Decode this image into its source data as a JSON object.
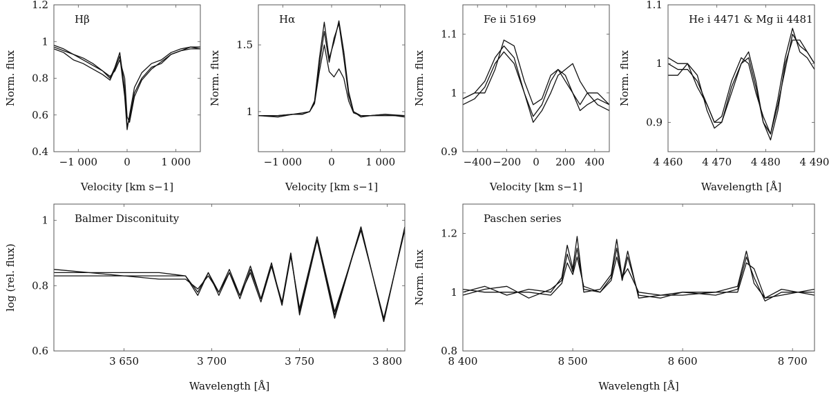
{
  "chart_data": [
    {
      "id": "hbeta",
      "type": "line",
      "title": "Hβ",
      "xlabel": "Velocity [km s−1]",
      "ylabel": "Norm. flux",
      "xlim": [
        -1500,
        1500
      ],
      "ylim": [
        0.4,
        1.2
      ],
      "xticks": [
        {
          "v": -1000,
          "label": "−1 000"
        },
        {
          "v": 0,
          "label": "0"
        },
        {
          "v": 1000,
          "label": "1 000"
        }
      ],
      "yticks": [
        {
          "v": 0.4,
          "label": "0.4"
        },
        {
          "v": 0.6,
          "label": "0.6"
        },
        {
          "v": 0.8,
          "label": "0.8"
        },
        {
          "v": 1.0,
          "label": "1"
        },
        {
          "v": 1.2,
          "label": "1.2"
        }
      ],
      "series": [
        {
          "x": [
            -1500,
            -1300,
            -1100,
            -900,
            -700,
            -500,
            -350,
            -250,
            -150,
            -50,
            0,
            50,
            150,
            300,
            500,
            700,
            900,
            1100,
            1300,
            1500
          ],
          "y": [
            0.97,
            0.95,
            0.93,
            0.9,
            0.87,
            0.84,
            0.8,
            0.86,
            0.94,
            0.74,
            0.54,
            0.58,
            0.72,
            0.8,
            0.86,
            0.88,
            0.93,
            0.95,
            0.96,
            0.96
          ]
        },
        {
          "x": [
            -1500,
            -1300,
            -1100,
            -900,
            -700,
            -500,
            -350,
            -250,
            -150,
            -50,
            0,
            50,
            150,
            300,
            500,
            700,
            900,
            1100,
            1300,
            1500
          ],
          "y": [
            0.96,
            0.94,
            0.9,
            0.88,
            0.85,
            0.82,
            0.79,
            0.85,
            0.92,
            0.7,
            0.52,
            0.6,
            0.75,
            0.83,
            0.88,
            0.9,
            0.94,
            0.96,
            0.97,
            0.96
          ]
        },
        {
          "x": [
            -1500,
            -1300,
            -1100,
            -900,
            -700,
            -500,
            -350,
            -250,
            -150,
            -50,
            0,
            50,
            150,
            300,
            500,
            700,
            900,
            1100,
            1300,
            1500
          ],
          "y": [
            0.98,
            0.96,
            0.93,
            0.91,
            0.88,
            0.84,
            0.81,
            0.84,
            0.9,
            0.8,
            0.59,
            0.56,
            0.7,
            0.79,
            0.85,
            0.89,
            0.93,
            0.95,
            0.97,
            0.97
          ]
        }
      ]
    },
    {
      "id": "halpha",
      "type": "line",
      "title": "Hα",
      "xlabel": "Velocity [km s−1]",
      "ylabel": "Norm. flux",
      "xlim": [
        -1500,
        1500
      ],
      "ylim": [
        0.7,
        1.8
      ],
      "xticks": [
        {
          "v": -1000,
          "label": "−1 000"
        },
        {
          "v": 0,
          "label": "0"
        },
        {
          "v": 1000,
          "label": "1 000"
        }
      ],
      "yticks": [
        {
          "v": 1.0,
          "label": "1"
        },
        {
          "v": 1.5,
          "label": "1.5"
        }
      ],
      "series": [
        {
          "x": [
            -1500,
            -1100,
            -800,
            -600,
            -450,
            -350,
            -250,
            -150,
            -50,
            50,
            150,
            250,
            350,
            450,
            600,
            800,
            1100,
            1500
          ],
          "y": [
            0.97,
            0.97,
            0.98,
            0.98,
            1.0,
            1.08,
            1.4,
            1.67,
            1.4,
            1.52,
            1.68,
            1.45,
            1.15,
            1.0,
            0.97,
            0.97,
            0.98,
            0.97
          ]
        },
        {
          "x": [
            -1500,
            -1100,
            -800,
            -600,
            -450,
            -350,
            -250,
            -150,
            -50,
            50,
            150,
            250,
            350,
            450,
            600,
            800,
            1100,
            1500
          ],
          "y": [
            0.97,
            0.96,
            0.98,
            0.99,
            1.0,
            1.07,
            1.35,
            1.6,
            1.37,
            1.55,
            1.66,
            1.4,
            1.12,
            1.0,
            0.96,
            0.97,
            0.98,
            0.96
          ]
        },
        {
          "x": [
            -1500,
            -1100,
            -800,
            -600,
            -450,
            -350,
            -250,
            -150,
            -50,
            50,
            150,
            250,
            350,
            450,
            600,
            800,
            1100,
            1500
          ],
          "y": [
            0.97,
            0.97,
            0.98,
            0.98,
            1.0,
            1.06,
            1.3,
            1.5,
            1.3,
            1.26,
            1.32,
            1.25,
            1.08,
            0.99,
            0.97,
            0.97,
            0.97,
            0.97
          ]
        }
      ]
    },
    {
      "id": "fe2",
      "type": "line",
      "title": "Fe ii 5169",
      "xlabel": "Velocity [km s−1]",
      "ylabel": "Norm. flux",
      "xlim": [
        -500,
        500
      ],
      "ylim": [
        0.9,
        1.15
      ],
      "xticks": [
        {
          "v": -400,
          "label": "−400"
        },
        {
          "v": -200,
          "label": "−200"
        },
        {
          "v": 0,
          "label": "0"
        },
        {
          "v": 200,
          "label": "200"
        },
        {
          "v": 400,
          "label": "400"
        }
      ],
      "yticks": [
        {
          "v": 0.9,
          "label": "0.9"
        },
        {
          "v": 1.0,
          "label": "1"
        },
        {
          "v": 1.1,
          "label": "1.1"
        }
      ],
      "series": [
        {
          "x": [
            -500,
            -420,
            -350,
            -280,
            -220,
            -150,
            -80,
            -20,
            40,
            100,
            150,
            200,
            250,
            300,
            350,
            420,
            500
          ],
          "y": [
            0.99,
            1.0,
            1.02,
            1.06,
            1.08,
            1.06,
            1.0,
            0.96,
            0.98,
            1.02,
            1.04,
            1.03,
            1.0,
            0.97,
            0.98,
            0.99,
            0.98
          ]
        },
        {
          "x": [
            -500,
            -420,
            -350,
            -280,
            -220,
            -150,
            -80,
            -20,
            40,
            100,
            150,
            200,
            250,
            300,
            350,
            420,
            500
          ],
          "y": [
            0.98,
            0.99,
            1.01,
            1.05,
            1.07,
            1.05,
            1.0,
            0.95,
            0.97,
            1.0,
            1.03,
            1.04,
            1.05,
            1.02,
            1.0,
            0.98,
            0.97
          ]
        },
        {
          "x": [
            -500,
            -420,
            -350,
            -280,
            -220,
            -150,
            -80,
            -20,
            40,
            100,
            150,
            200,
            250,
            300,
            350,
            420,
            500
          ],
          "y": [
            0.99,
            1.0,
            1.0,
            1.04,
            1.09,
            1.08,
            1.02,
            0.98,
            0.99,
            1.03,
            1.04,
            1.02,
            1.0,
            0.98,
            1.0,
            1.0,
            0.98
          ]
        }
      ]
    },
    {
      "id": "hemg",
      "type": "line",
      "title": "He i 4471 & Mg ii 4481",
      "xlabel": "Wavelength [Å]",
      "ylabel": "Norm. flux",
      "xlim": [
        4460,
        4490
      ],
      "ylim": [
        0.85,
        1.1
      ],
      "xticks": [
        {
          "v": 4460,
          "label": "4 460"
        },
        {
          "v": 4470,
          "label": "4 470"
        },
        {
          "v": 4480,
          "label": "4 480"
        },
        {
          "v": 4490,
          "label": "4 490"
        }
      ],
      "yticks": [
        {
          "v": 0.9,
          "label": "0.9"
        },
        {
          "v": 1.0,
          "label": "1"
        },
        {
          "v": 1.1,
          "label": "1.1"
        }
      ],
      "series": [
        {
          "x": [
            4460,
            4462,
            4464,
            4466,
            4468,
            4469.5,
            4471,
            4473,
            4475,
            4476.5,
            4478,
            4479.5,
            4481,
            4482.5,
            4484,
            4485.5,
            4487,
            4488.5,
            4490
          ],
          "y": [
            1.0,
            0.99,
            0.99,
            0.97,
            0.93,
            0.9,
            0.9,
            0.96,
            1.0,
            1.01,
            0.96,
            0.9,
            0.88,
            0.93,
            0.99,
            1.05,
            1.03,
            1.02,
            1.0
          ]
        },
        {
          "x": [
            4460,
            4462,
            4464,
            4466,
            4468,
            4469.5,
            4471,
            4473,
            4475,
            4476.5,
            4478,
            4479.5,
            4481,
            4482.5,
            4484,
            4485.5,
            4487,
            4488.5,
            4490
          ],
          "y": [
            0.98,
            0.98,
            1.0,
            0.98,
            0.92,
            0.89,
            0.9,
            0.95,
            1.0,
            1.02,
            0.97,
            0.9,
            0.87,
            0.92,
            1.0,
            1.04,
            1.04,
            1.02,
            1.0
          ]
        },
        {
          "x": [
            4460,
            4462,
            4464,
            4466,
            4468,
            4469.5,
            4471,
            4473,
            4475,
            4476.5,
            4478,
            4479.5,
            4481,
            4482.5,
            4484,
            4485.5,
            4487,
            4488.5,
            4490
          ],
          "y": [
            1.01,
            1.0,
            1.0,
            0.96,
            0.93,
            0.9,
            0.91,
            0.97,
            1.01,
            1.0,
            0.95,
            0.91,
            0.88,
            0.94,
            1.01,
            1.06,
            1.02,
            1.01,
            0.99
          ]
        }
      ]
    },
    {
      "id": "balmer",
      "type": "line",
      "title": "Balmer Disconituity",
      "xlabel": "Wavelength [Å]",
      "ylabel": "log (rel. flux)",
      "xlim": [
        3610,
        3810
      ],
      "ylim": [
        0.6,
        1.05
      ],
      "xticks": [
        {
          "v": 3650,
          "label": "3 650"
        },
        {
          "v": 3700,
          "label": "3 700"
        },
        {
          "v": 3750,
          "label": "3 750"
        },
        {
          "v": 3800,
          "label": "3 800"
        }
      ],
      "yticks": [
        {
          "v": 0.6,
          "label": "0.6"
        },
        {
          "v": 0.8,
          "label": "0.8"
        },
        {
          "v": 1.0,
          "label": "1"
        }
      ],
      "series": [
        {
          "x": [
            3610,
            3630,
            3650,
            3670,
            3685,
            3692,
            3698,
            3704,
            3710,
            3716,
            3722,
            3728,
            3734,
            3740,
            3745,
            3750,
            3760,
            3770,
            3785,
            3798,
            3810
          ],
          "y": [
            0.85,
            0.84,
            0.84,
            0.84,
            0.83,
            0.78,
            0.84,
            0.78,
            0.85,
            0.77,
            0.86,
            0.76,
            0.87,
            0.74,
            0.9,
            0.72,
            0.94,
            0.71,
            0.98,
            0.69,
            0.98
          ]
        },
        {
          "x": [
            3610,
            3630,
            3650,
            3670,
            3685,
            3692,
            3698,
            3704,
            3710,
            3716,
            3722,
            3728,
            3734,
            3740,
            3745,
            3750,
            3760,
            3770,
            3785,
            3798,
            3810
          ],
          "y": [
            0.84,
            0.84,
            0.83,
            0.83,
            0.83,
            0.77,
            0.84,
            0.77,
            0.84,
            0.76,
            0.85,
            0.76,
            0.86,
            0.74,
            0.89,
            0.73,
            0.95,
            0.72,
            0.97,
            0.7,
            0.97
          ]
        },
        {
          "x": [
            3610,
            3630,
            3650,
            3670,
            3685,
            3692,
            3698,
            3704,
            3710,
            3716,
            3722,
            3728,
            3734,
            3740,
            3745,
            3750,
            3760,
            3770,
            3785,
            3798,
            3810
          ],
          "y": [
            0.83,
            0.83,
            0.83,
            0.82,
            0.82,
            0.79,
            0.83,
            0.78,
            0.84,
            0.77,
            0.84,
            0.75,
            0.86,
            0.75,
            0.9,
            0.71,
            0.94,
            0.7,
            0.98,
            0.69,
            0.98
          ]
        }
      ]
    },
    {
      "id": "paschen",
      "type": "line",
      "title": "Paschen series",
      "xlabel": "Wavelength [Å]",
      "ylabel": "Norm. flux",
      "xlim": [
        8400,
        8720
      ],
      "ylim": [
        0.8,
        1.3
      ],
      "xticks": [
        {
          "v": 8400,
          "label": "8 400"
        },
        {
          "v": 8500,
          "label": "8 500"
        },
        {
          "v": 8600,
          "label": "8 600"
        },
        {
          "v": 8700,
          "label": "8 700"
        }
      ],
      "yticks": [
        {
          "v": 0.8,
          "label": "0.8"
        },
        {
          "v": 1.0,
          "label": "1"
        },
        {
          "v": 1.2,
          "label": "1.2"
        }
      ],
      "series": [
        {
          "x": [
            8400,
            8420,
            8440,
            8460,
            8480,
            8490,
            8495,
            8500,
            8504,
            8510,
            8525,
            8535,
            8540,
            8545,
            8550,
            8560,
            8580,
            8600,
            8630,
            8650,
            8658,
            8665,
            8675,
            8690,
            8720
          ],
          "y": [
            1.0,
            1.02,
            0.99,
            1.01,
            1.0,
            1.05,
            1.16,
            1.08,
            1.19,
            1.0,
            1.01,
            1.06,
            1.18,
            1.05,
            1.14,
            0.98,
            0.99,
            1.0,
            1.0,
            1.02,
            1.14,
            1.03,
            0.98,
            1.01,
            0.99
          ]
        },
        {
          "x": [
            8400,
            8420,
            8440,
            8460,
            8480,
            8490,
            8495,
            8500,
            8504,
            8510,
            8525,
            8535,
            8540,
            8545,
            8550,
            8560,
            8580,
            8600,
            8630,
            8650,
            8658,
            8665,
            8675,
            8690,
            8720
          ],
          "y": [
            0.99,
            1.01,
            1.02,
            0.98,
            1.01,
            1.04,
            1.13,
            1.07,
            1.15,
            1.01,
            1.0,
            1.05,
            1.15,
            1.04,
            1.12,
            0.99,
            0.98,
            1.0,
            0.99,
            1.01,
            1.12,
            1.05,
            0.97,
            1.0,
            1.0
          ]
        },
        {
          "x": [
            8400,
            8420,
            8440,
            8460,
            8480,
            8490,
            8495,
            8500,
            8504,
            8510,
            8525,
            8535,
            8540,
            8545,
            8550,
            8560,
            8580,
            8600,
            8630,
            8650,
            8658,
            8665,
            8675,
            8690,
            8720
          ],
          "y": [
            1.01,
            1.0,
            1.0,
            1.0,
            0.99,
            1.03,
            1.1,
            1.06,
            1.12,
            1.02,
            1.0,
            1.04,
            1.12,
            1.05,
            1.08,
            1.0,
            0.99,
            0.99,
            1.0,
            1.0,
            1.1,
            1.08,
            0.98,
            0.99,
            1.01
          ]
        }
      ]
    }
  ]
}
